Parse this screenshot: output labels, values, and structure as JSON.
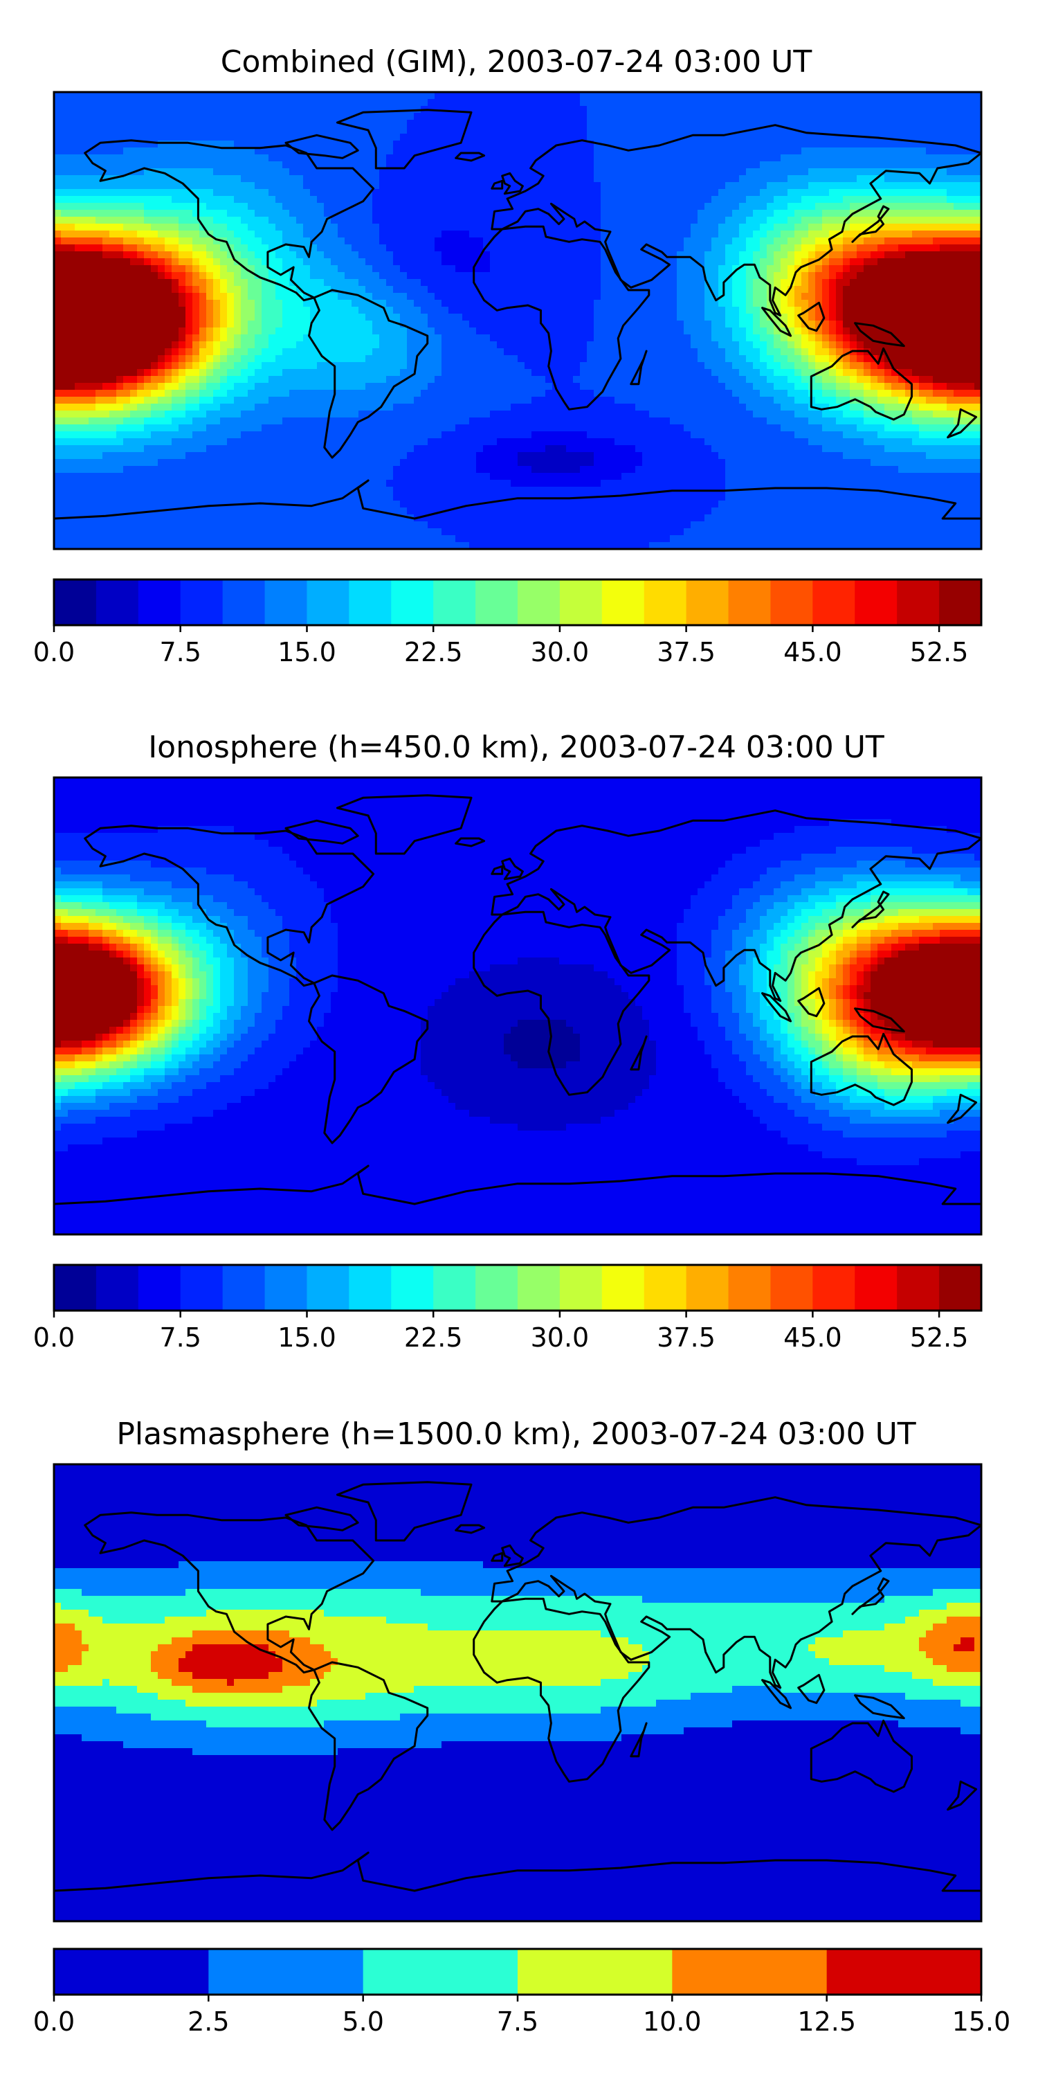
{
  "figure": {
    "panels": [
      {
        "title": "Combined (GIM), 2003-07-24 03:00 UT",
        "colorbar": {
          "vmin": 0,
          "vmax": 55,
          "levels": 22,
          "ticks": [
            "0.0",
            "7.5",
            "15.0",
            "22.5",
            "30.0",
            "37.5",
            "45.0",
            "52.5"
          ],
          "tick_values": [
            0,
            7.5,
            15,
            22.5,
            30,
            37.5,
            45,
            52.5
          ]
        },
        "field": {
          "background": 10,
          "blobs": [
            {
              "lon": -160,
              "lat": 0,
              "amp": 48,
              "slon": 30,
              "slat": 22
            },
            {
              "lon": 165,
              "lat": 0,
              "amp": 44,
              "slon": 32,
              "slat": 24
            },
            {
              "lon": 125,
              "lat": 15,
              "amp": 22,
              "slon": 30,
              "slat": 25
            },
            {
              "lon": -120,
              "lat": 20,
              "amp": 10,
              "slon": 30,
              "slat": 30
            },
            {
              "lon": -60,
              "lat": -5,
              "amp": 8,
              "slon": 25,
              "slat": 20
            },
            {
              "lon": 15,
              "lat": -55,
              "amp": -6,
              "slon": 25,
              "slat": 8
            },
            {
              "lon": -30,
              "lat": 20,
              "amp": -4,
              "slon": 25,
              "slat": 20
            }
          ]
        }
      },
      {
        "title": "Ionosphere  (h=450.0 km), 2003-07-24 03:00 UT",
        "colorbar": {
          "vmin": 0,
          "vmax": 55,
          "levels": 22,
          "ticks": [
            "0.0",
            "7.5",
            "15.0",
            "22.5",
            "30.0",
            "37.5",
            "45.0",
            "52.5"
          ],
          "tick_values": [
            0,
            7.5,
            15,
            22.5,
            30,
            37.5,
            45,
            52.5
          ]
        },
        "field": {
          "background": 6,
          "blobs": [
            {
              "lon": -165,
              "lat": 5,
              "amp": 38,
              "slon": 28,
              "slat": 20
            },
            {
              "lon": 168,
              "lat": 5,
              "amp": 36,
              "slon": 30,
              "slat": 22
            },
            {
              "lon": 128,
              "lat": 15,
              "amp": 20,
              "slon": 30,
              "slat": 25
            },
            {
              "lon": 140,
              "lat": -20,
              "amp": 10,
              "slon": 25,
              "slat": 20
            },
            {
              "lon": -120,
              "lat": 20,
              "amp": 6,
              "slon": 30,
              "slat": 30
            },
            {
              "lon": 10,
              "lat": -15,
              "amp": -4,
              "slon": 30,
              "slat": 20
            }
          ]
        }
      },
      {
        "title": "Plasmasphere (h=1500.0 km), 2003-07-24 03:00 UT",
        "colorbar": {
          "vmin": 0,
          "vmax": 15,
          "levels": 6,
          "ticks": [
            "0.0",
            "2.5",
            "5.0",
            "7.5",
            "10.0",
            "12.5",
            "15.0"
          ],
          "tick_values": [
            0,
            2.5,
            5,
            7.5,
            10,
            12.5,
            15
          ]
        },
        "field": {
          "background": 1,
          "blobs": [
            {
              "lon": -100,
              "lat": 10,
              "amp": 9,
              "slon": 60,
              "slat": 18
            },
            {
              "lon": -115,
              "lat": 12,
              "amp": 5,
              "slon": 18,
              "slat": 8
            },
            {
              "lon": 30,
              "lat": 10,
              "amp": 6,
              "slon": 45,
              "slat": 16
            },
            {
              "lon": 130,
              "lat": 15,
              "amp": 5,
              "slon": 35,
              "slat": 14
            },
            {
              "lon": 175,
              "lat": 20,
              "amp": 6,
              "slon": 15,
              "slat": 12
            },
            {
              "lon": 0,
              "lat": 35,
              "amp": 2.5,
              "slon": 200,
              "slat": 12
            }
          ]
        }
      }
    ]
  }
}
